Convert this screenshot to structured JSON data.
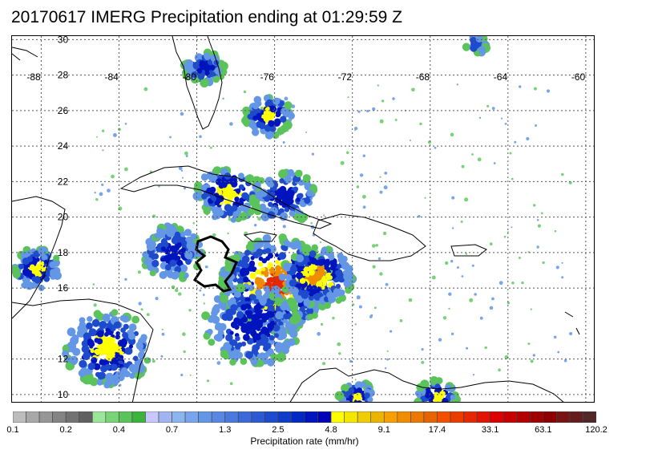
{
  "title": "20170617 IMERG Precipitation ending at 01:29:59 Z",
  "map": {
    "lon_labels": [
      "-88",
      "-84",
      "-80",
      "-76",
      "-72",
      "-68",
      "-64",
      "-60"
    ],
    "lat_labels": [
      "30",
      "28",
      "26",
      "24",
      "22",
      "20",
      "18",
      "16",
      "12",
      "10"
    ],
    "lon_range": [
      -89.5,
      -59.5
    ],
    "lat_range": [
      9.5,
      30.2
    ],
    "region_outline": "black outline of basin/region near 17N 78W"
  },
  "colorbar": {
    "title": "Precipitation rate (mm/hr)",
    "tick_labels": [
      "0.1",
      "0.2",
      "0.4",
      "0.7",
      "1.3",
      "2.5",
      "4.8",
      "9.1",
      "17.4",
      "33.1",
      "63.1",
      "120.2"
    ],
    "colors": [
      "#bdbdbd",
      "#a8a8a8",
      "#969696",
      "#848484",
      "#727272",
      "#606060",
      "#9be69b",
      "#78d278",
      "#5ac35a",
      "#3cb43c",
      "#c8c8ff",
      "#a0b4f0",
      "#8cb4f0",
      "#78a5eb",
      "#6496e6",
      "#5a87e1",
      "#4b78dc",
      "#3c69d7",
      "#2d5ad2",
      "#1e4bcd",
      "#0f3cc8",
      "#0028c3",
      "#0014be",
      "#0000b9",
      "#ffff00",
      "#f5e600",
      "#f0cd00",
      "#ebb400",
      "#f5a000",
      "#f08c00",
      "#eb7800",
      "#e66400",
      "#f05000",
      "#eb3c00",
      "#e62800",
      "#e11400",
      "#dc0000",
      "#c80000",
      "#b40000",
      "#a00000",
      "#8c0000",
      "#781414",
      "#641e1e",
      "#502828"
    ]
  }
}
